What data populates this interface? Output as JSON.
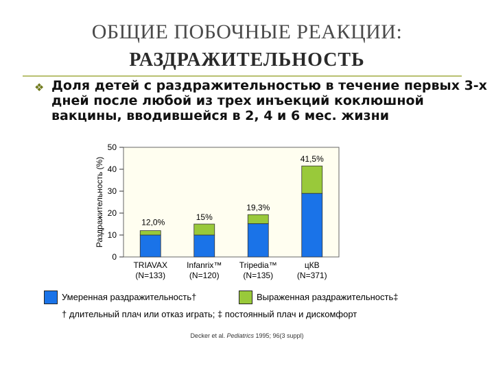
{
  "slide": {
    "title_line1": "ОБЩИЕ ПОБОЧНЫЕ РЕАКЦИИ:",
    "title_line2": "РАЗДРАЖИТЕЛЬНОСТЬ",
    "bullet_icon": "diamond-bullet-icon",
    "subtitle": "Доля детей с раздражительностью в течение первых 3-х дней после любой из трех инъекций коклюшной вакцины, вводившейся в 2, 4 и 6 мес. жизни",
    "footnote": "† длительный плач или отказ играть; ‡ постоянный плач и дискомфорт",
    "reference": {
      "authors": "Decker et al. ",
      "journal": "Pediatrics",
      "details": " 1995; 96(3 suppl)"
    }
  },
  "chart_data": {
    "type": "bar",
    "stacked": true,
    "ylabel": "Раздражительность (%)",
    "ylim": [
      0,
      50
    ],
    "yticks": [
      0,
      10,
      20,
      30,
      40,
      50
    ],
    "grid": false,
    "categories": [
      {
        "name": "TRIAVAX",
        "n": "(N=133)"
      },
      {
        "name": "Infanrix™",
        "n": "(N=120)"
      },
      {
        "name": "Tripedia™",
        "n": "(N=135)"
      },
      {
        "name": "цКВ",
        "n": "(N=371)"
      }
    ],
    "series": [
      {
        "name": "Умеренная раздражительность†",
        "color": "#1a73e8",
        "values": [
          10,
          10,
          15.2,
          29
        ]
      },
      {
        "name": "Выраженная раздражительность‡",
        "color": "#99c93a",
        "values": [
          2,
          5,
          4.1,
          12.5
        ]
      }
    ],
    "totals_labels": [
      "12,0%",
      "15%",
      "19,3%",
      "41,5%"
    ],
    "plot_background": "#fffef0"
  }
}
